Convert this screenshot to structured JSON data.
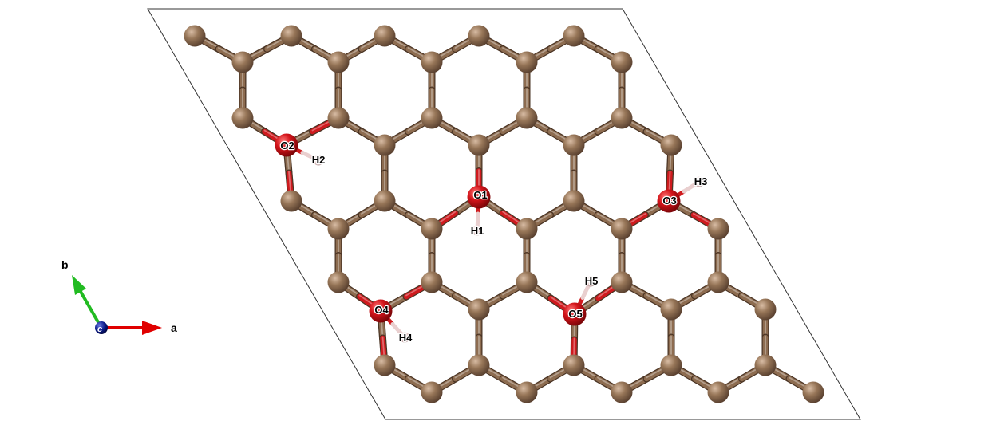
{
  "structure": {
    "atom_labels": {
      "O1": "O1",
      "O2": "O2",
      "O3": "O3",
      "O4": "O4",
      "O5": "O5",
      "H1": "H1",
      "H2": "H2",
      "H3": "H3",
      "H4": "H4",
      "H5": "H5"
    },
    "colors": {
      "carbon": "#8a6a50",
      "oxygen": "#d0141a",
      "hydrogen": "#f0dcdc",
      "cell_border": "#333333"
    }
  },
  "compass": {
    "a_label": "a",
    "b_label": "b",
    "c_label": "c",
    "a_color": "#e00000",
    "b_color": "#22bb22",
    "c_color": "#0a1a8a"
  }
}
